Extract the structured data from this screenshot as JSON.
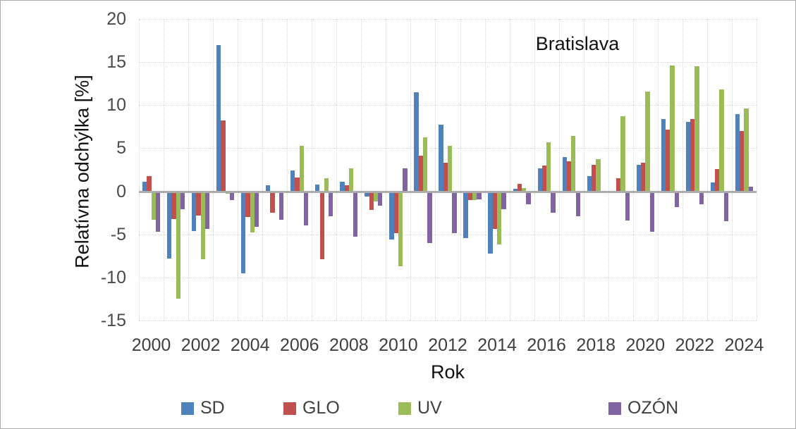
{
  "window": {
    "background": "#ffffff",
    "border_color": "#ababab"
  },
  "chart_data": {
    "type": "bar",
    "title": "Bratislava",
    "xlabel": "Rok",
    "ylabel": "Relatívna odchýlka [%]",
    "ylim": [
      -15,
      20
    ],
    "yticks": [
      20,
      15,
      10,
      5,
      0,
      -5,
      -10,
      -15
    ],
    "xtick_labels": [
      "2000",
      "2002",
      "2004",
      "2006",
      "2008",
      "2010",
      "2012",
      "2014",
      "2016",
      "2018",
      "2020",
      "2022",
      "2024"
    ],
    "grid": true,
    "legend_position": "bottom",
    "categories": [
      2000,
      2001,
      2002,
      2003,
      2004,
      2005,
      2006,
      2007,
      2008,
      2009,
      2010,
      2011,
      2012,
      2013,
      2014,
      2015,
      2016,
      2017,
      2018,
      2019,
      2020,
      2021,
      2022,
      2023,
      2024
    ],
    "series": [
      {
        "name": "SD",
        "color": "#4f81bd",
        "values": [
          1.1,
          -7.8,
          -4.6,
          17.0,
          -9.5,
          0.7,
          2.4,
          0.8,
          1.1,
          -0.6,
          -5.6,
          11.5,
          7.7,
          -5.4,
          -7.2,
          0.3,
          2.7,
          4.0,
          1.8,
          -0.2,
          3.1,
          8.4,
          8.1,
          1.0,
          9.0
        ]
      },
      {
        "name": "GLO",
        "color": "#c0504d",
        "values": [
          1.8,
          -3.2,
          -2.8,
          8.2,
          -3.0,
          -2.5,
          1.6,
          -7.9,
          0.7,
          -2.2,
          -4.9,
          4.1,
          3.3,
          -1.0,
          -4.4,
          0.9,
          3.0,
          3.5,
          3.1,
          1.5,
          3.3,
          7.2,
          8.4,
          2.6,
          7.0
        ]
      },
      {
        "name": "UV",
        "color": "#9bbb59",
        "values": [
          -3.3,
          -12.5,
          -7.9,
          -0.3,
          -4.8,
          0.0,
          5.3,
          1.5,
          2.7,
          -1.2,
          -8.7,
          6.3,
          5.3,
          -1.0,
          -6.2,
          0.4,
          5.7,
          6.4,
          3.7,
          8.7,
          11.6,
          14.6,
          14.5,
          11.8,
          9.6
        ]
      },
      {
        "name": "OZÓN",
        "color": "#8064a2",
        "values": [
          -4.7,
          -2.1,
          -4.4,
          -1.0,
          -4.1,
          -3.3,
          -4.0,
          -2.9,
          -5.3,
          -1.7,
          2.7,
          -6.0,
          -4.9,
          -0.9,
          -2.1,
          -1.5,
          -2.5,
          -2.9,
          0.0,
          -3.4,
          -4.7,
          -1.8,
          -1.5,
          -3.5,
          0.5
        ]
      }
    ],
    "style": {
      "grid_color": "#d4d4d4",
      "zero_line_color": "#acacac",
      "tick_label_color": "#3f3f3f",
      "title_color": "#111111"
    }
  }
}
